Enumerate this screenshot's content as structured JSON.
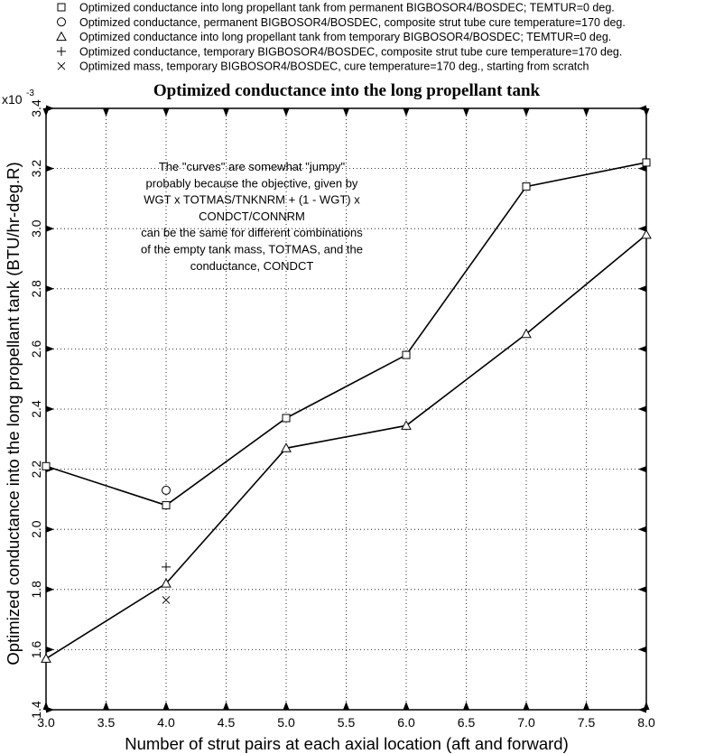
{
  "chart_data": {
    "type": "line",
    "title": "Optimized conductance into the long propellant tank",
    "xlabel": "Number of strut pairs at each axial location (aft and forward)",
    "ylabel": "Optimized conductance into the long propellant tank (BTU/hr-deg.R)",
    "y_multiplier": "x10",
    "y_exponent": "-3",
    "xlim": [
      3.0,
      8.0
    ],
    "ylim": [
      1.4,
      3.4
    ],
    "xticks": [
      "3.0",
      "3.5",
      "4.0",
      "4.5",
      "5.0",
      "5.5",
      "6.0",
      "6.5",
      "7.0",
      "7.5",
      "8.0"
    ],
    "yticks": [
      "1.4",
      "1.6",
      "1.8",
      "2.0",
      "2.2",
      "2.4",
      "2.6",
      "2.8",
      "3.0",
      "3.2",
      "3.4"
    ],
    "grid": true,
    "legend_position": "top",
    "series": [
      {
        "name": "Optimized conductance into long propellant tank from permanent BIGBOSOR4/BOSDEC; TEMTUR=0 deg.",
        "marker": "square",
        "line": true,
        "x": [
          3,
          4,
          5,
          6,
          7,
          8
        ],
        "y": [
          2.21,
          2.08,
          2.37,
          2.58,
          3.14,
          3.22
        ]
      },
      {
        "name": "Optimized conductance, permanent BIGBOSOR4/BOSDEC, composite strut tube cure temperature=170 deg.",
        "marker": "circle",
        "line": false,
        "x": [
          4
        ],
        "y": [
          2.13
        ]
      },
      {
        "name": "Optimized conductance into long propellant tank from temporary BIGBOSOR4/BOSDEC; TEMTUR=0 deg.",
        "marker": "triangle",
        "line": true,
        "x": [
          3,
          4,
          5,
          6,
          7,
          8
        ],
        "y": [
          1.57,
          1.82,
          2.27,
          2.345,
          2.65,
          2.98
        ]
      },
      {
        "name": "Optimized conductance, temporary BIGBOSOR4/BOSDEC, composite strut tube cure temperature=170 deg.",
        "marker": "plus",
        "line": false,
        "x": [
          4
        ],
        "y": [
          1.875
        ]
      },
      {
        "name": "Optimized mass, temporary BIGBOSOR4/BOSDEC, cure temperature=170 deg., starting from scratch",
        "marker": "x",
        "line": false,
        "x": [
          4
        ],
        "y": [
          1.765
        ]
      }
    ],
    "annotation": [
      "The \"curves\" are somewhat \"jumpy\"",
      "probably because the objective, given by",
      "WGT x TOTMAS/TNKNRM + (1 - WGT) x",
      "CONDCT/CONNRM",
      "can be the same for different combinations",
      "of the empty tank mass, TOTMAS, and the",
      "conductance, CONDCT"
    ]
  }
}
